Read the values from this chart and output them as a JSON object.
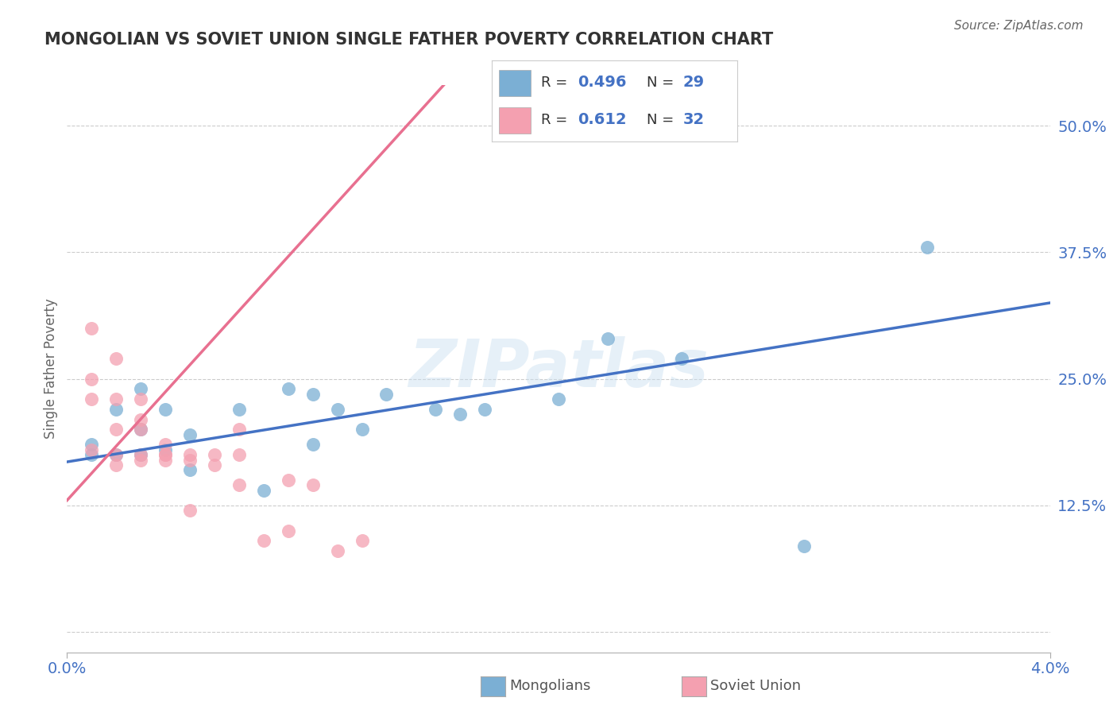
{
  "title": "MONGOLIAN VS SOVIET UNION SINGLE FATHER POVERTY CORRELATION CHART",
  "source": "Source: ZipAtlas.com",
  "ylabel": "Single Father Poverty",
  "xlim": [
    0.0,
    0.04
  ],
  "ylim": [
    -0.02,
    0.54
  ],
  "yticks": [
    0.0,
    0.125,
    0.25,
    0.375,
    0.5
  ],
  "ytick_labels": [
    "",
    "12.5%",
    "25.0%",
    "37.5%",
    "50.0%"
  ],
  "xticks": [
    0.0,
    0.04
  ],
  "xtick_labels": [
    "0.0%",
    "4.0%"
  ],
  "watermark": "ZIPatlas",
  "mongolian_color": "#7bafd4",
  "soviet_color": "#f4a0b0",
  "mongolian_line_color": "#4472c4",
  "soviet_line_color": "#e87090",
  "background_color": "#ffffff",
  "title_color": "#333333",
  "axis_color": "#4472c4",
  "mongolians_x": [
    0.001,
    0.001,
    0.002,
    0.002,
    0.003,
    0.003,
    0.003,
    0.004,
    0.004,
    0.005,
    0.005,
    0.007,
    0.008,
    0.009,
    0.01,
    0.01,
    0.011,
    0.012,
    0.013,
    0.015,
    0.016,
    0.017,
    0.02,
    0.022,
    0.025,
    0.03,
    0.035
  ],
  "mongolians_y": [
    0.175,
    0.185,
    0.175,
    0.22,
    0.24,
    0.2,
    0.175,
    0.22,
    0.18,
    0.195,
    0.16,
    0.22,
    0.14,
    0.24,
    0.235,
    0.185,
    0.22,
    0.2,
    0.235,
    0.22,
    0.215,
    0.22,
    0.23,
    0.29,
    0.27,
    0.085,
    0.38
  ],
  "soviet_x": [
    0.001,
    0.001,
    0.001,
    0.001,
    0.002,
    0.002,
    0.002,
    0.002,
    0.002,
    0.003,
    0.003,
    0.003,
    0.003,
    0.003,
    0.004,
    0.004,
    0.004,
    0.004,
    0.005,
    0.005,
    0.005,
    0.006,
    0.006,
    0.007,
    0.007,
    0.007,
    0.008,
    0.009,
    0.009,
    0.01,
    0.011,
    0.012
  ],
  "soviet_y": [
    0.3,
    0.25,
    0.23,
    0.18,
    0.27,
    0.23,
    0.2,
    0.175,
    0.165,
    0.23,
    0.21,
    0.2,
    0.175,
    0.17,
    0.175,
    0.185,
    0.175,
    0.17,
    0.175,
    0.17,
    0.12,
    0.175,
    0.165,
    0.2,
    0.175,
    0.145,
    0.09,
    0.15,
    0.1,
    0.145,
    0.08,
    0.09
  ]
}
